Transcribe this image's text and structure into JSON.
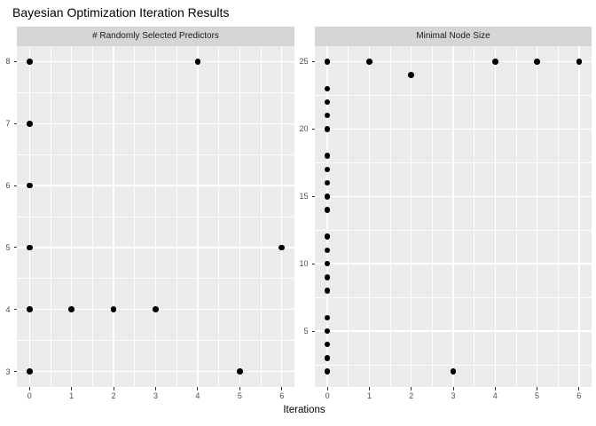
{
  "title": "Bayesian Optimization Iteration Results",
  "x_axis_title": "Iterations",
  "chart_data": [
    {
      "type": "scatter",
      "facet_label": "# Randomly Selected Predictors",
      "xlabel": "Iterations",
      "ylabel": "",
      "x_ticks": [
        0,
        1,
        2,
        3,
        4,
        5,
        6
      ],
      "y_ticks": [
        3,
        4,
        5,
        6,
        7,
        8
      ],
      "xlim": [
        -0.3,
        6.3
      ],
      "ylim": [
        2.75,
        8.25
      ],
      "grid": "major-and-minor",
      "legend": "none",
      "points": [
        {
          "x": 0,
          "y": 8
        },
        {
          "x": 0,
          "y": 7
        },
        {
          "x": 0,
          "y": 6
        },
        {
          "x": 0,
          "y": 5
        },
        {
          "x": 0,
          "y": 4
        },
        {
          "x": 0,
          "y": 3
        },
        {
          "x": 1,
          "y": 4
        },
        {
          "x": 2,
          "y": 4
        },
        {
          "x": 3,
          "y": 4
        },
        {
          "x": 4,
          "y": 8
        },
        {
          "x": 5,
          "y": 3
        },
        {
          "x": 6,
          "y": 5
        }
      ]
    },
    {
      "type": "scatter",
      "facet_label": "Minimal Node Size",
      "xlabel": "Iterations",
      "ylabel": "",
      "x_ticks": [
        0,
        1,
        2,
        3,
        4,
        5,
        6
      ],
      "y_ticks": [
        5,
        10,
        15,
        20,
        25
      ],
      "xlim": [
        -0.3,
        6.3
      ],
      "ylim": [
        0.85,
        26.15
      ],
      "grid": "major-and-minor",
      "legend": "none",
      "points": [
        {
          "x": 0,
          "y": 25
        },
        {
          "x": 0,
          "y": 23
        },
        {
          "x": 0,
          "y": 22
        },
        {
          "x": 0,
          "y": 21
        },
        {
          "x": 0,
          "y": 20
        },
        {
          "x": 0,
          "y": 18
        },
        {
          "x": 0,
          "y": 17
        },
        {
          "x": 0,
          "y": 16
        },
        {
          "x": 0,
          "y": 15
        },
        {
          "x": 0,
          "y": 14
        },
        {
          "x": 0,
          "y": 12
        },
        {
          "x": 0,
          "y": 11
        },
        {
          "x": 0,
          "y": 10
        },
        {
          "x": 0,
          "y": 9
        },
        {
          "x": 0,
          "y": 8
        },
        {
          "x": 0,
          "y": 6
        },
        {
          "x": 0,
          "y": 5
        },
        {
          "x": 0,
          "y": 4
        },
        {
          "x": 0,
          "y": 3
        },
        {
          "x": 0,
          "y": 2
        },
        {
          "x": 1,
          "y": 25
        },
        {
          "x": 2,
          "y": 24
        },
        {
          "x": 3,
          "y": 2
        },
        {
          "x": 4,
          "y": 25
        },
        {
          "x": 5,
          "y": 25
        },
        {
          "x": 6,
          "y": 25
        }
      ]
    }
  ],
  "colors": {
    "figure_background": "#FFFFFF",
    "panel_background": "#EBEBEB",
    "strip_background": "#D5D5D5",
    "gridline_major": "#FFFFFF",
    "gridline_minor": "#FFFFFF",
    "point": "#000000",
    "axis_text": "#4D4D4D",
    "tick_mark": "#333333",
    "title_text": "#000000",
    "strip_text": "#1A1A1A"
  }
}
